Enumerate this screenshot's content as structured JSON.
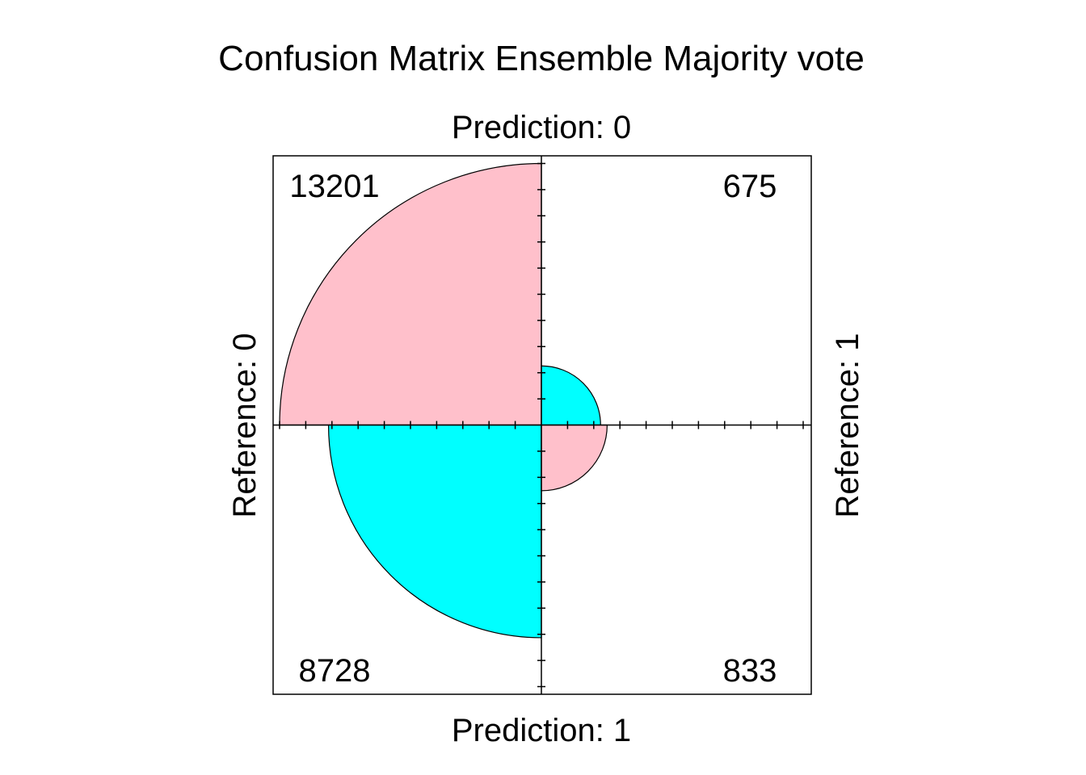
{
  "chart_data": {
    "type": "fourfold",
    "title": "Confusion Matrix Ensemble Majority vote",
    "top_label": "Prediction: 0",
    "bottom_label": "Prediction: 1",
    "left_label": "Reference: 0",
    "right_label": "Reference: 1",
    "cells": [
      {
        "id": "top-left",
        "quadrant": "top-left",
        "value": 13201,
        "label": "13201",
        "color": "#FFC0CB"
      },
      {
        "id": "top-right",
        "quadrant": "top-right",
        "value": 675,
        "label": "675",
        "color": "#00FFFF"
      },
      {
        "id": "bottom-left",
        "quadrant": "bottom-left",
        "value": 8728,
        "label": "8728",
        "color": "#00FFFF"
      },
      {
        "id": "bottom-right",
        "quadrant": "bottom-right",
        "value": 833,
        "label": "833",
        "color": "#FFC0CB"
      }
    ],
    "frame_color": "#000000",
    "ticks": true
  }
}
